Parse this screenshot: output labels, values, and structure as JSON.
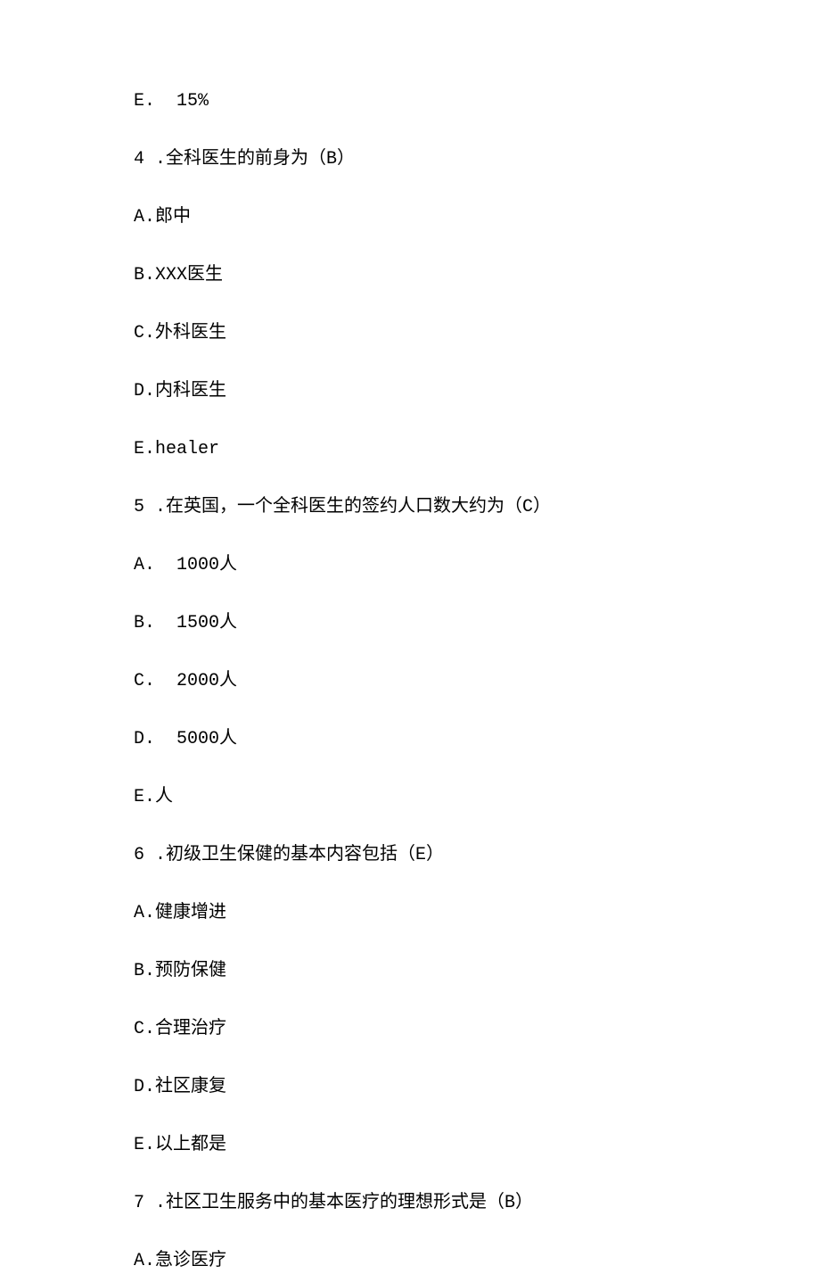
{
  "lines": [
    {
      "segments": [
        {
          "text": "E.  15%",
          "ascii": true
        }
      ]
    },
    {
      "segments": [
        {
          "text": "4 .",
          "ascii": true
        },
        {
          "text": "全科医生的前身为（"
        },
        {
          "text": "B",
          "ascii": true
        },
        {
          "text": "）"
        }
      ]
    },
    {
      "segments": [
        {
          "text": "A.",
          "ascii": true
        },
        {
          "text": "郎中"
        }
      ]
    },
    {
      "segments": [
        {
          "text": "B.XXX",
          "ascii": true
        },
        {
          "text": "医生"
        }
      ]
    },
    {
      "segments": [
        {
          "text": "C.",
          "ascii": true
        },
        {
          "text": "外科医生"
        }
      ]
    },
    {
      "segments": [
        {
          "text": "D.",
          "ascii": true
        },
        {
          "text": "内科医生"
        }
      ]
    },
    {
      "segments": [
        {
          "text": "E.healer",
          "ascii": true
        }
      ]
    },
    {
      "segments": [
        {
          "text": "5 .",
          "ascii": true
        },
        {
          "text": "在英国，一个全科医生的签约人口数大约为（"
        },
        {
          "text": "C",
          "ascii": true
        },
        {
          "text": "）"
        }
      ]
    },
    {
      "segments": [
        {
          "text": "A.  1000",
          "ascii": true
        },
        {
          "text": "人"
        }
      ]
    },
    {
      "segments": [
        {
          "text": "B.  1500",
          "ascii": true
        },
        {
          "text": "人"
        }
      ]
    },
    {
      "segments": [
        {
          "text": "C.  2000",
          "ascii": true
        },
        {
          "text": "人"
        }
      ]
    },
    {
      "segments": [
        {
          "text": "D.  5000",
          "ascii": true
        },
        {
          "text": "人"
        }
      ]
    },
    {
      "segments": [
        {
          "text": "E.",
          "ascii": true
        },
        {
          "text": "人"
        }
      ]
    },
    {
      "segments": [
        {
          "text": "6 .",
          "ascii": true
        },
        {
          "text": "初级卫生保健的基本内容包括（"
        },
        {
          "text": "E",
          "ascii": true
        },
        {
          "text": "）"
        }
      ]
    },
    {
      "segments": [
        {
          "text": "A.",
          "ascii": true
        },
        {
          "text": "健康增进"
        }
      ]
    },
    {
      "segments": [
        {
          "text": "B.",
          "ascii": true
        },
        {
          "text": "预防保健"
        }
      ]
    },
    {
      "segments": [
        {
          "text": "C.",
          "ascii": true
        },
        {
          "text": "合理治疗"
        }
      ]
    },
    {
      "segments": [
        {
          "text": "D.",
          "ascii": true
        },
        {
          "text": "社区康复"
        }
      ]
    },
    {
      "segments": [
        {
          "text": "E.",
          "ascii": true
        },
        {
          "text": "以上都是"
        }
      ]
    },
    {
      "segments": [
        {
          "text": "7 .",
          "ascii": true
        },
        {
          "text": "社区卫生服务中的基本医疗的理想形式是（"
        },
        {
          "text": "B",
          "ascii": true
        },
        {
          "text": "）"
        }
      ]
    },
    {
      "segments": [
        {
          "text": "A.",
          "ascii": true
        },
        {
          "text": "急诊医疗"
        }
      ]
    }
  ]
}
